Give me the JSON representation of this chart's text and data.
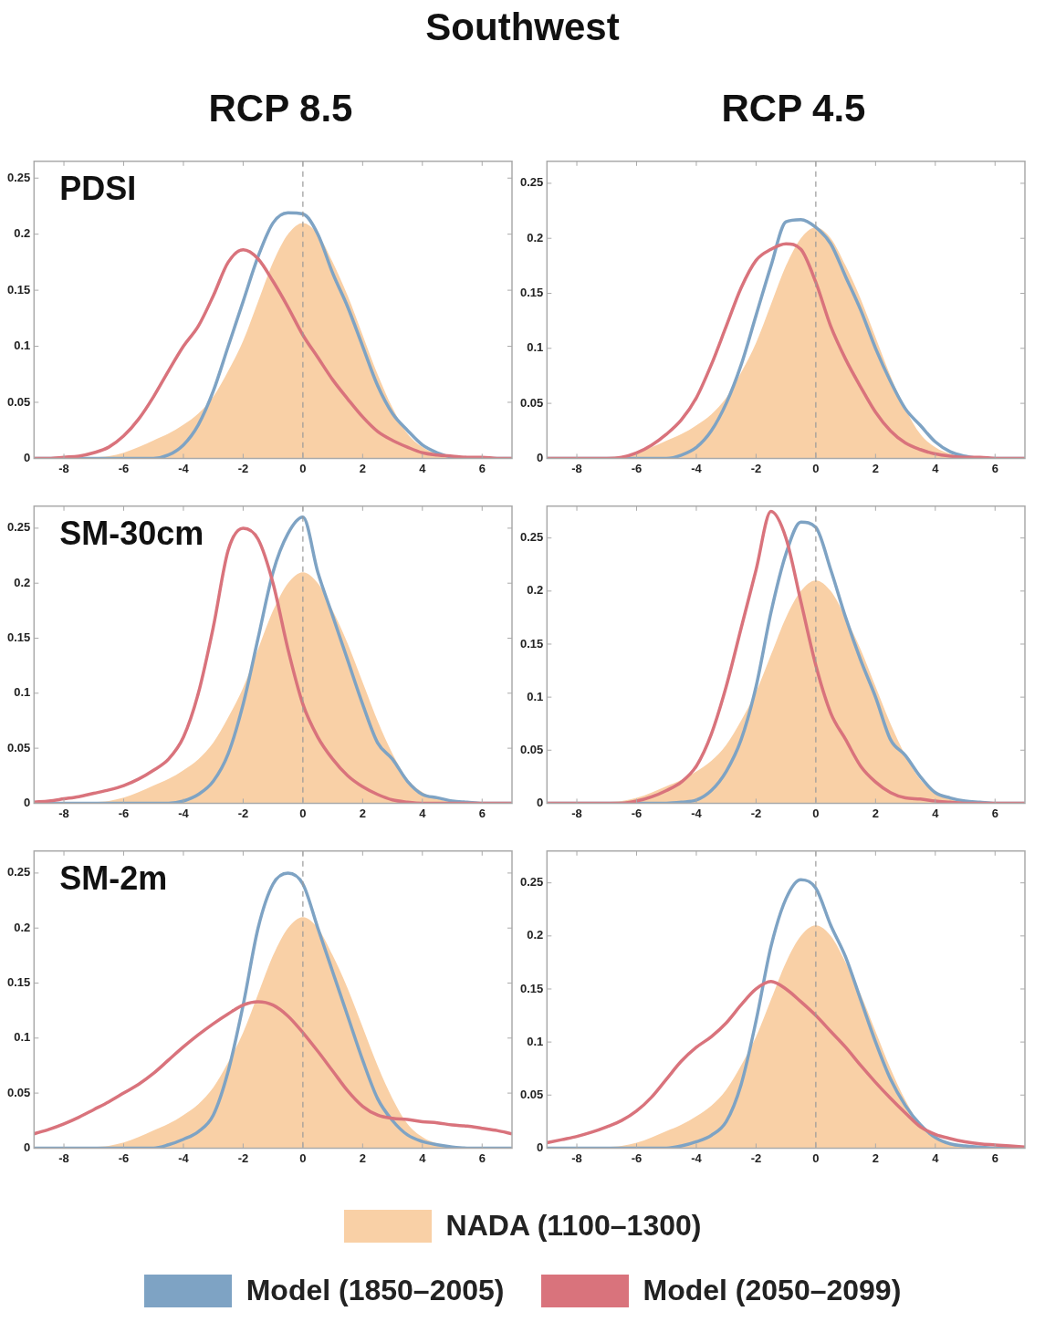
{
  "chart_data": [
    {
      "type": "line",
      "title": "RCP 8.5",
      "subtitle": "PDSI",
      "annotations": [
        "Southwest"
      ],
      "legend": "bottom",
      "xlim": [
        -9,
        7
      ],
      "xticks": [
        -8,
        -6,
        -4,
        -2,
        0,
        2,
        4,
        6
      ],
      "ylim": [
        0,
        0.265
      ],
      "yticks": [
        0,
        0.05,
        0.1,
        0.15,
        0.2,
        0.25
      ],
      "ref_lines": [
        {
          "axis": "x",
          "value": 0,
          "color": "#999999",
          "line_style": "dashed"
        }
      ],
      "x": [
        -9,
        -8.5,
        -8,
        -7.5,
        -7,
        -6.5,
        -6,
        -5.5,
        -5,
        -4.5,
        -4,
        -3.5,
        -3,
        -2.5,
        -2,
        -1.5,
        -1,
        -0.5,
        0,
        0.5,
        1,
        1.5,
        2,
        2.5,
        3,
        3.5,
        4,
        4.5,
        5,
        5.5,
        6,
        6.5,
        7
      ],
      "series": [
        {
          "name": "NADA (1100–1300)",
          "type": "area",
          "color": "#f9d0a6",
          "values": [
            0,
            0,
            0,
            0,
            0.001,
            0.002,
            0.005,
            0.01,
            0.016,
            0.022,
            0.03,
            0.04,
            0.055,
            0.078,
            0.105,
            0.14,
            0.175,
            0.2,
            0.21,
            0.2,
            0.175,
            0.145,
            0.11,
            0.075,
            0.045,
            0.022,
            0.01,
            0.004,
            0.001,
            0,
            0,
            0,
            0
          ]
        },
        {
          "name": "Model (1850–2005)",
          "color": "#7ea3c4",
          "values": [
            0,
            0,
            0,
            0,
            0,
            0,
            0,
            0,
            0,
            0.003,
            0.012,
            0.03,
            0.06,
            0.1,
            0.14,
            0.18,
            0.21,
            0.219,
            0.218,
            0.2,
            0.165,
            0.135,
            0.1,
            0.065,
            0.04,
            0.025,
            0.012,
            0.005,
            0.001,
            0,
            0,
            0,
            0
          ]
        },
        {
          "name": "Model (2050–2099)",
          "color": "#d9737c",
          "values": [
            0,
            0,
            0.001,
            0.002,
            0.005,
            0.01,
            0.02,
            0.035,
            0.055,
            0.078,
            0.1,
            0.118,
            0.145,
            0.175,
            0.186,
            0.178,
            0.158,
            0.135,
            0.11,
            0.09,
            0.07,
            0.053,
            0.037,
            0.024,
            0.016,
            0.01,
            0.005,
            0.003,
            0.002,
            0.001,
            0.001,
            0,
            0
          ]
        }
      ]
    },
    {
      "type": "line",
      "title": "RCP 4.5",
      "xlim": [
        -9,
        7
      ],
      "xticks": [
        -8,
        -6,
        -4,
        -2,
        0,
        2,
        4,
        6
      ],
      "ylim": [
        0,
        0.27
      ],
      "yticks": [
        0,
        0.05,
        0.1,
        0.15,
        0.2,
        0.25
      ],
      "ref_lines": [
        {
          "axis": "x",
          "value": 0,
          "color": "#999999",
          "line_style": "dashed"
        }
      ],
      "x": [
        -9,
        -8.5,
        -8,
        -7.5,
        -7,
        -6.5,
        -6,
        -5.5,
        -5,
        -4.5,
        -4,
        -3.5,
        -3,
        -2.5,
        -2,
        -1.5,
        -1,
        -0.5,
        0,
        0.5,
        1,
        1.5,
        2,
        2.5,
        3,
        3.5,
        4,
        4.5,
        5,
        5.5,
        6,
        6.5,
        7
      ],
      "series": [
        {
          "type": "area",
          "color": "#f9d0a6",
          "values": [
            0,
            0,
            0,
            0,
            0.001,
            0.002,
            0.005,
            0.01,
            0.016,
            0.022,
            0.03,
            0.04,
            0.055,
            0.078,
            0.105,
            0.14,
            0.175,
            0.2,
            0.21,
            0.2,
            0.175,
            0.145,
            0.11,
            0.075,
            0.045,
            0.022,
            0.01,
            0.004,
            0.001,
            0,
            0,
            0,
            0
          ]
        },
        {
          "color": "#7ea3c4",
          "values": [
            0,
            0,
            0,
            0,
            0,
            0,
            0,
            0,
            0,
            0.003,
            0.01,
            0.025,
            0.05,
            0.085,
            0.13,
            0.175,
            0.215,
            0.217,
            0.21,
            0.195,
            0.165,
            0.135,
            0.1,
            0.07,
            0.045,
            0.03,
            0.015,
            0.006,
            0.002,
            0,
            0,
            0,
            0
          ]
        },
        {
          "color": "#d9737c",
          "values": [
            0,
            0,
            0,
            0,
            0,
            0.001,
            0.005,
            0.012,
            0.022,
            0.035,
            0.055,
            0.085,
            0.12,
            0.155,
            0.18,
            0.19,
            0.195,
            0.19,
            0.16,
            0.12,
            0.09,
            0.065,
            0.042,
            0.025,
            0.014,
            0.008,
            0.004,
            0.002,
            0.001,
            0.001,
            0,
            0,
            0
          ]
        }
      ]
    },
    {
      "type": "line",
      "subtitle": "SM-30cm",
      "xlim": [
        -9,
        7
      ],
      "xticks": [
        -8,
        -6,
        -4,
        -2,
        0,
        2,
        4,
        6
      ],
      "ylim": [
        0,
        0.27
      ],
      "yticks": [
        0,
        0.05,
        0.1,
        0.15,
        0.2,
        0.25
      ],
      "ref_lines": [
        {
          "axis": "x",
          "value": 0,
          "color": "#999999",
          "line_style": "dashed"
        }
      ],
      "x": [
        -9,
        -8.5,
        -8,
        -7.5,
        -7,
        -6.5,
        -6,
        -5.5,
        -5,
        -4.5,
        -4,
        -3.5,
        -3,
        -2.5,
        -2,
        -1.5,
        -1,
        -0.5,
        0,
        0.5,
        1,
        1.5,
        2,
        2.5,
        3,
        3.5,
        4,
        4.5,
        5,
        5.5,
        6,
        6.5,
        7
      ],
      "series": [
        {
          "type": "area",
          "color": "#f9d0a6",
          "values": [
            0,
            0,
            0,
            0,
            0.001,
            0.002,
            0.005,
            0.01,
            0.016,
            0.022,
            0.03,
            0.04,
            0.055,
            0.078,
            0.105,
            0.14,
            0.175,
            0.2,
            0.21,
            0.2,
            0.175,
            0.145,
            0.11,
            0.075,
            0.045,
            0.022,
            0.01,
            0.004,
            0.001,
            0,
            0,
            0,
            0
          ]
        },
        {
          "color": "#7ea3c4",
          "values": [
            0,
            0,
            0,
            0,
            0,
            0,
            0,
            0,
            0,
            0,
            0.002,
            0.008,
            0.02,
            0.045,
            0.09,
            0.15,
            0.21,
            0.245,
            0.26,
            0.21,
            0.17,
            0.13,
            0.09,
            0.055,
            0.04,
            0.02,
            0.008,
            0.005,
            0.002,
            0.001,
            0,
            0,
            0
          ]
        },
        {
          "color": "#d9737c",
          "values": [
            0.001,
            0.002,
            0.004,
            0.006,
            0.009,
            0.012,
            0.016,
            0.022,
            0.03,
            0.04,
            0.06,
            0.1,
            0.16,
            0.23,
            0.25,
            0.24,
            0.2,
            0.14,
            0.09,
            0.06,
            0.04,
            0.025,
            0.015,
            0.008,
            0.003,
            0.001,
            0,
            0,
            0,
            0,
            0,
            0,
            0
          ]
        }
      ]
    },
    {
      "type": "line",
      "xlim": [
        -9,
        7
      ],
      "xticks": [
        -8,
        -6,
        -4,
        -2,
        0,
        2,
        4,
        6
      ],
      "ylim": [
        0,
        0.28
      ],
      "yticks": [
        0,
        0.05,
        0.1,
        0.15,
        0.2,
        0.25
      ],
      "ref_lines": [
        {
          "axis": "x",
          "value": 0,
          "color": "#999999",
          "line_style": "dashed"
        }
      ],
      "x": [
        -9,
        -8.5,
        -8,
        -7.5,
        -7,
        -6.5,
        -6,
        -5.5,
        -5,
        -4.5,
        -4,
        -3.5,
        -3,
        -2.5,
        -2,
        -1.5,
        -1,
        -0.5,
        0,
        0.5,
        1,
        1.5,
        2,
        2.5,
        3,
        3.5,
        4,
        4.5,
        5,
        5.5,
        6,
        6.5,
        7
      ],
      "series": [
        {
          "type": "area",
          "color": "#f9d0a6",
          "values": [
            0,
            0,
            0,
            0,
            0.001,
            0.002,
            0.005,
            0.01,
            0.016,
            0.022,
            0.03,
            0.04,
            0.055,
            0.078,
            0.105,
            0.14,
            0.175,
            0.2,
            0.21,
            0.2,
            0.175,
            0.145,
            0.11,
            0.075,
            0.045,
            0.022,
            0.01,
            0.004,
            0.001,
            0,
            0,
            0,
            0
          ]
        },
        {
          "color": "#7ea3c4",
          "values": [
            0,
            0,
            0,
            0,
            0,
            0,
            0,
            0,
            0,
            0.001,
            0.003,
            0.012,
            0.03,
            0.06,
            0.11,
            0.18,
            0.235,
            0.265,
            0.26,
            0.22,
            0.175,
            0.135,
            0.1,
            0.06,
            0.045,
            0.025,
            0.01,
            0.005,
            0.002,
            0.001,
            0,
            0,
            0
          ]
        },
        {
          "color": "#d9737c",
          "values": [
            0,
            0,
            0,
            0,
            0,
            0,
            0.002,
            0.006,
            0.012,
            0.02,
            0.035,
            0.065,
            0.11,
            0.165,
            0.22,
            0.275,
            0.25,
            0.19,
            0.13,
            0.085,
            0.06,
            0.035,
            0.02,
            0.01,
            0.005,
            0.004,
            0.002,
            0.001,
            0,
            0,
            0,
            0,
            0
          ]
        }
      ]
    },
    {
      "type": "line",
      "subtitle": "SM-2m",
      "xlim": [
        -9,
        7
      ],
      "xticks": [
        -8,
        -6,
        -4,
        -2,
        0,
        2,
        4,
        6
      ],
      "ylim": [
        0,
        0.27
      ],
      "yticks": [
        0,
        0.05,
        0.1,
        0.15,
        0.2,
        0.25
      ],
      "ref_lines": [
        {
          "axis": "x",
          "value": 0,
          "color": "#999999",
          "line_style": "dashed"
        }
      ],
      "x": [
        -9,
        -8.5,
        -8,
        -7.5,
        -7,
        -6.5,
        -6,
        -5.5,
        -5,
        -4.5,
        -4,
        -3.5,
        -3,
        -2.5,
        -2,
        -1.5,
        -1,
        -0.5,
        0,
        0.5,
        1,
        1.5,
        2,
        2.5,
        3,
        3.5,
        4,
        4.5,
        5,
        5.5,
        6,
        6.5,
        7
      ],
      "series": [
        {
          "type": "area",
          "color": "#f9d0a6",
          "values": [
            0,
            0,
            0,
            0,
            0.001,
            0.002,
            0.005,
            0.01,
            0.016,
            0.022,
            0.03,
            0.04,
            0.055,
            0.078,
            0.105,
            0.14,
            0.175,
            0.2,
            0.21,
            0.2,
            0.175,
            0.145,
            0.11,
            0.075,
            0.045,
            0.022,
            0.01,
            0.004,
            0.001,
            0,
            0,
            0,
            0
          ]
        },
        {
          "color": "#7ea3c4",
          "values": [
            0,
            0,
            0,
            0,
            0,
            0,
            0,
            0,
            0,
            0.003,
            0.008,
            0.015,
            0.03,
            0.07,
            0.13,
            0.2,
            0.24,
            0.25,
            0.24,
            0.2,
            0.16,
            0.12,
            0.08,
            0.045,
            0.025,
            0.012,
            0.006,
            0.003,
            0.001,
            0,
            0,
            0,
            0
          ]
        },
        {
          "color": "#d9737c",
          "values": [
            0.013,
            0.017,
            0.022,
            0.028,
            0.035,
            0.042,
            0.05,
            0.058,
            0.068,
            0.08,
            0.092,
            0.103,
            0.113,
            0.122,
            0.13,
            0.133,
            0.13,
            0.12,
            0.105,
            0.088,
            0.07,
            0.052,
            0.038,
            0.03,
            0.027,
            0.026,
            0.024,
            0.023,
            0.021,
            0.02,
            0.018,
            0.016,
            0.013
          ]
        }
      ]
    },
    {
      "type": "line",
      "xlim": [
        -9,
        7
      ],
      "xticks": [
        -8,
        -6,
        -4,
        -2,
        0,
        2,
        4,
        6
      ],
      "ylim": [
        0,
        0.28
      ],
      "yticks": [
        0,
        0.05,
        0.1,
        0.15,
        0.2,
        0.25
      ],
      "ref_lines": [
        {
          "axis": "x",
          "value": 0,
          "color": "#999999",
          "line_style": "dashed"
        }
      ],
      "x": [
        -9,
        -8.5,
        -8,
        -7.5,
        -7,
        -6.5,
        -6,
        -5.5,
        -5,
        -4.5,
        -4,
        -3.5,
        -3,
        -2.5,
        -2,
        -1.5,
        -1,
        -0.5,
        0,
        0.5,
        1,
        1.5,
        2,
        2.5,
        3,
        3.5,
        4,
        4.5,
        5,
        5.5,
        6,
        6.5,
        7
      ],
      "series": [
        {
          "type": "area",
          "color": "#f9d0a6",
          "values": [
            0,
            0,
            0,
            0,
            0.001,
            0.002,
            0.005,
            0.01,
            0.016,
            0.022,
            0.03,
            0.04,
            0.055,
            0.078,
            0.105,
            0.14,
            0.175,
            0.2,
            0.21,
            0.2,
            0.175,
            0.145,
            0.11,
            0.075,
            0.045,
            0.022,
            0.01,
            0.004,
            0.001,
            0,
            0,
            0,
            0
          ]
        },
        {
          "color": "#7ea3c4",
          "values": [
            0,
            0,
            0,
            0,
            0,
            0,
            0,
            0,
            0,
            0.002,
            0.006,
            0.012,
            0.025,
            0.06,
            0.12,
            0.19,
            0.235,
            0.253,
            0.245,
            0.21,
            0.18,
            0.14,
            0.1,
            0.065,
            0.04,
            0.022,
            0.01,
            0.004,
            0.002,
            0.001,
            0,
            0,
            0
          ]
        },
        {
          "color": "#d9737c",
          "values": [
            0.005,
            0.008,
            0.011,
            0.015,
            0.02,
            0.026,
            0.035,
            0.048,
            0.065,
            0.082,
            0.095,
            0.105,
            0.118,
            0.135,
            0.15,
            0.157,
            0.15,
            0.138,
            0.125,
            0.11,
            0.095,
            0.078,
            0.062,
            0.047,
            0.033,
            0.02,
            0.013,
            0.009,
            0.006,
            0.004,
            0.003,
            0.002,
            0.001
          ]
        }
      ]
    }
  ]
}
